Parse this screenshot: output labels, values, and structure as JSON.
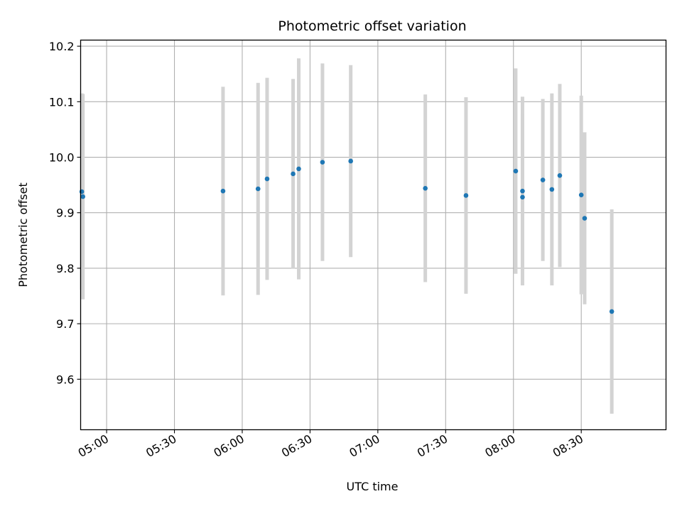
{
  "chart_data": {
    "type": "scatter",
    "title": "Photometric offset variation",
    "xlabel": "UTC time",
    "ylabel": "Photometric offset",
    "x_ticks": [
      "05:00",
      "05:30",
      "06:00",
      "06:30",
      "07:00",
      "07:30",
      "08:00",
      "08:30"
    ],
    "y_ticks": [
      "9.6",
      "9.7",
      "9.8",
      "9.9",
      "10.0",
      "10.1",
      "10.2"
    ],
    "xlim": [
      "04:48.5",
      "09:07.5"
    ],
    "ylim": [
      9.509,
      10.211
    ],
    "grid": true,
    "colors": {
      "point": "#1f77b4",
      "errorbar": "#d3d3d3",
      "grid": "#b0b0b0"
    },
    "series": [
      {
        "points": [
          {
            "x": "04:49.0",
            "y": 9.938,
            "err": 0.177
          },
          {
            "x": "04:49.5",
            "y": 9.929,
            "err": 0.185
          },
          {
            "x": "05:51.5",
            "y": 9.939,
            "err": 0.188
          },
          {
            "x": "06:07.0",
            "y": 9.943,
            "err": 0.191
          },
          {
            "x": "06:11.0",
            "y": 9.961,
            "err": 0.182
          },
          {
            "x": "06:22.5",
            "y": 9.97,
            "err": 0.171
          },
          {
            "x": "06:25.0",
            "y": 9.979,
            "err": 0.199
          },
          {
            "x": "06:35.5",
            "y": 9.991,
            "err": 0.178
          },
          {
            "x": "06:48.0",
            "y": 9.993,
            "err": 0.173
          },
          {
            "x": "07:21.0",
            "y": 9.944,
            "err": 0.169
          },
          {
            "x": "07:39.0",
            "y": 9.931,
            "err": 0.177
          },
          {
            "x": "08:01.0",
            "y": 9.975,
            "err": 0.185
          },
          {
            "x": "08:04.0",
            "y": 9.939,
            "err": 0.17
          },
          {
            "x": "08:04.0",
            "y": 9.928,
            "err": 0.15
          },
          {
            "x": "08:13.0",
            "y": 9.959,
            "err": 0.146
          },
          {
            "x": "08:17.0",
            "y": 9.942,
            "err": 0.173
          },
          {
            "x": "08:20.5",
            "y": 9.967,
            "err": 0.165
          },
          {
            "x": "08:30.0",
            "y": 9.932,
            "err": 0.179
          },
          {
            "x": "08:31.5",
            "y": 9.89,
            "err": 0.155
          },
          {
            "x": "08:43.5",
            "y": 9.722,
            "err": 0.184
          }
        ]
      }
    ]
  }
}
